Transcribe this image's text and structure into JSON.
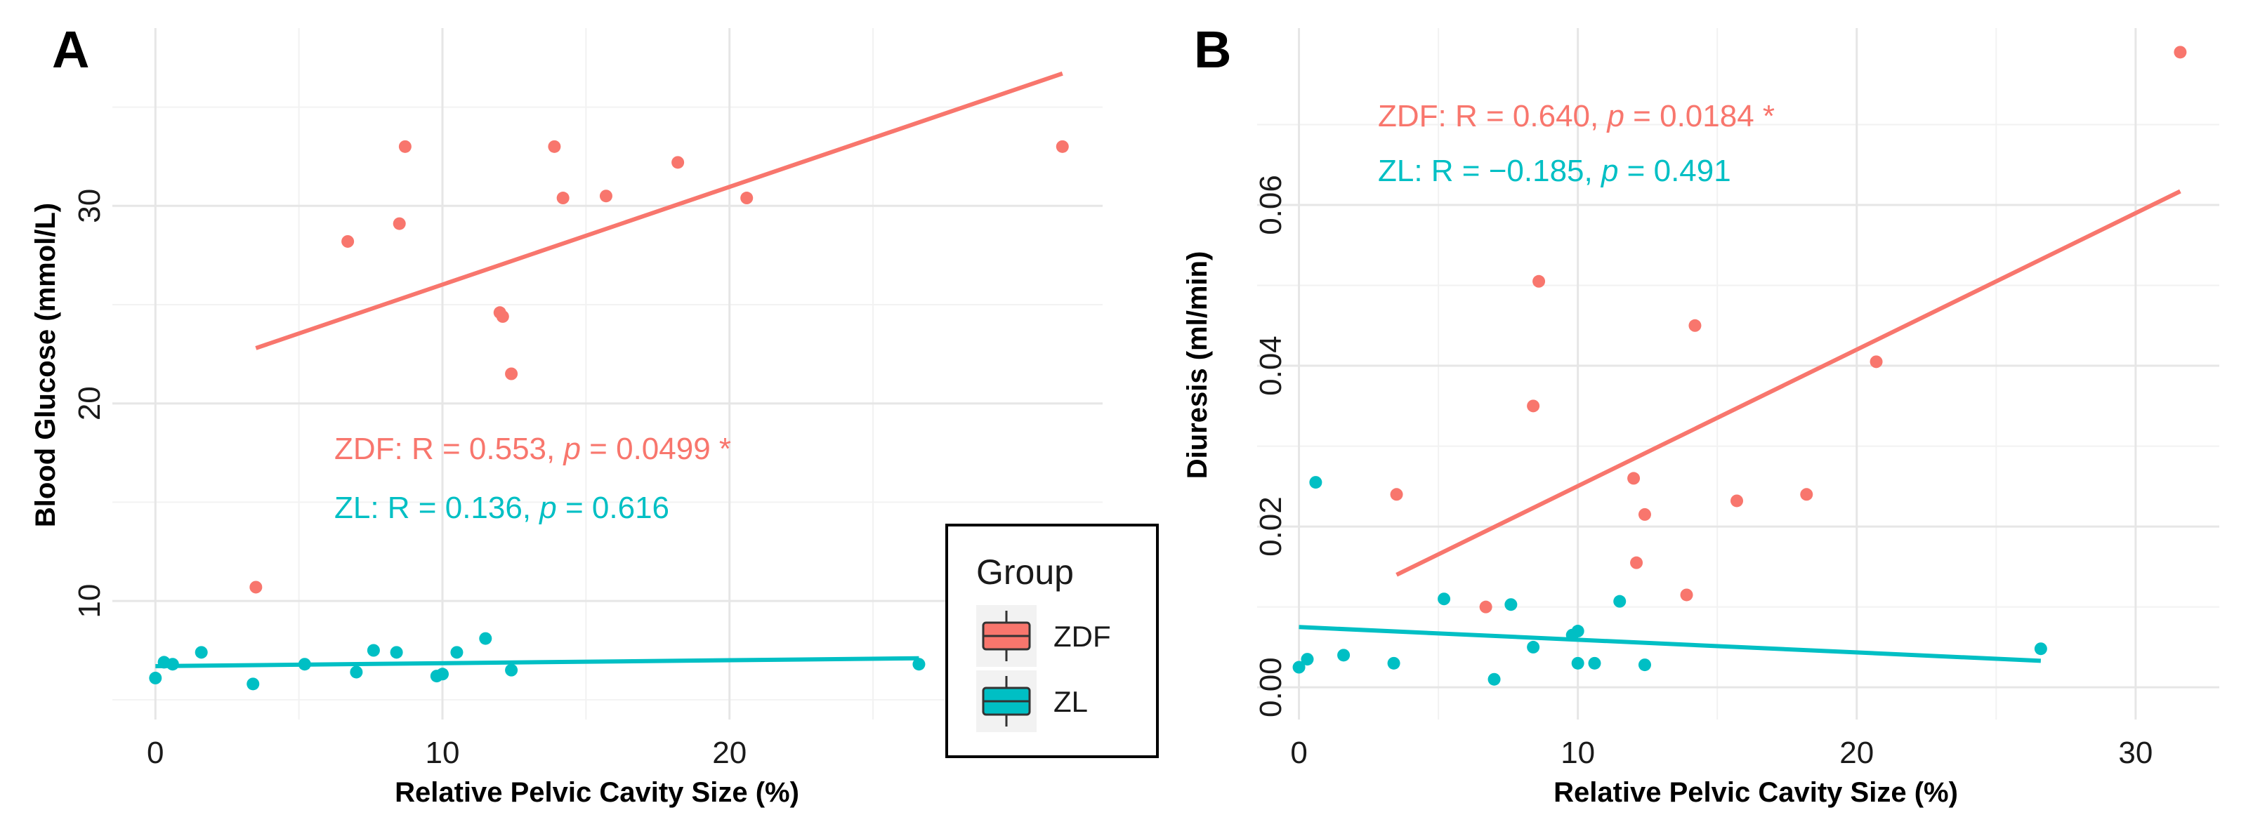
{
  "chart_data": [
    {
      "type": "scatter",
      "panel_label": "A",
      "xlabel": "Relative Pelvic Cavity Size (%)",
      "ylabel": "Blood Glucose (mmol/L)",
      "xlim": [
        -1.5,
        33
      ],
      "ylim": [
        4,
        39
      ],
      "xticks": [
        0,
        10,
        20
      ],
      "yticks": [
        10,
        20,
        30
      ],
      "series": [
        {
          "name": "ZDF",
          "color": "#f8766d",
          "points": [
            [
              3.5,
              10.7
            ],
            [
              6.7,
              28.2
            ],
            [
              8.5,
              29.1
            ],
            [
              8.7,
              33.0
            ],
            [
              12.0,
              24.6
            ],
            [
              12.1,
              24.4
            ],
            [
              12.4,
              21.5
            ],
            [
              13.9,
              33.0
            ],
            [
              14.2,
              30.4
            ],
            [
              15.7,
              30.5
            ],
            [
              18.2,
              32.2
            ],
            [
              20.6,
              30.4
            ],
            [
              31.6,
              33.0
            ]
          ],
          "fit": [
            [
              3.5,
              22.8
            ],
            [
              31.6,
              36.7
            ]
          ],
          "annotation": {
            "prefix": "ZDF: R = 0.553, ",
            "p": "p",
            "suffix": " = 0.0499 *"
          }
        },
        {
          "name": "ZL",
          "color": "#00bfc4",
          "points": [
            [
              0.0,
              6.1
            ],
            [
              0.3,
              6.9
            ],
            [
              0.6,
              6.8
            ],
            [
              1.6,
              7.4
            ],
            [
              3.4,
              5.8
            ],
            [
              5.2,
              6.8
            ],
            [
              7.0,
              6.4
            ],
            [
              7.6,
              7.5
            ],
            [
              8.4,
              7.4
            ],
            [
              9.8,
              6.2
            ],
            [
              10.0,
              6.3
            ],
            [
              10.5,
              7.4
            ],
            [
              11.5,
              8.1
            ],
            [
              12.4,
              6.5
            ],
            [
              26.6,
              6.8
            ]
          ],
          "fit": [
            [
              0.0,
              6.7
            ],
            [
              26.6,
              7.1
            ]
          ],
          "annotation": {
            "prefix": "ZL: R = 0.136, ",
            "p": "p",
            "suffix": " = 0.616"
          }
        }
      ],
      "legend": {
        "title": "Group",
        "entries": [
          "ZDF",
          "ZL"
        ]
      }
    },
    {
      "type": "scatter",
      "panel_label": "B",
      "xlabel": "Relative Pelvic Cavity Size (%)",
      "ylabel": "Diuresis (ml/min)",
      "xlim": [
        -1.5,
        33
      ],
      "ylim": [
        -0.004,
        0.082
      ],
      "xticks": [
        0,
        10,
        20,
        30
      ],
      "yticks": [
        "0.00",
        "0.02",
        "0.04",
        "0.06"
      ],
      "series": [
        {
          "name": "ZDF",
          "color": "#f8766d",
          "points": [
            [
              3.5,
              0.024
            ],
            [
              6.7,
              0.01
            ],
            [
              8.4,
              0.035
            ],
            [
              8.6,
              0.0505
            ],
            [
              12.0,
              0.026
            ],
            [
              12.1,
              0.0155
            ],
            [
              12.4,
              0.0215
            ],
            [
              13.9,
              0.0115
            ],
            [
              14.2,
              0.045
            ],
            [
              15.7,
              0.0232
            ],
            [
              18.2,
              0.024
            ],
            [
              20.7,
              0.0405
            ],
            [
              31.6,
              0.079
            ]
          ],
          "fit": [
            [
              3.5,
              0.014
            ],
            [
              31.6,
              0.0617
            ]
          ],
          "annotation": {
            "prefix": "ZDF: R = 0.640, ",
            "p": "p",
            "suffix": " = 0.0184 *"
          }
        },
        {
          "name": "ZL",
          "color": "#00bfc4",
          "points": [
            [
              0.0,
              0.0025
            ],
            [
              0.3,
              0.0035
            ],
            [
              0.6,
              0.0255
            ],
            [
              1.6,
              0.004
            ],
            [
              3.4,
              0.003
            ],
            [
              5.2,
              0.011
            ],
            [
              7.0,
              0.001
            ],
            [
              7.6,
              0.0103
            ],
            [
              8.4,
              0.005
            ],
            [
              9.8,
              0.0065
            ],
            [
              10.0,
              0.007
            ],
            [
              10.0,
              0.003
            ],
            [
              10.6,
              0.003
            ],
            [
              11.5,
              0.0107
            ],
            [
              12.4,
              0.0028
            ],
            [
              26.6,
              0.0048
            ]
          ],
          "fit": [
            [
              0.0,
              0.0075
            ],
            [
              26.6,
              0.0033
            ]
          ],
          "annotation": {
            "prefix": "ZL: R = −0.185, ",
            "p": "p",
            "suffix": " = 0.491"
          }
        }
      ]
    }
  ]
}
